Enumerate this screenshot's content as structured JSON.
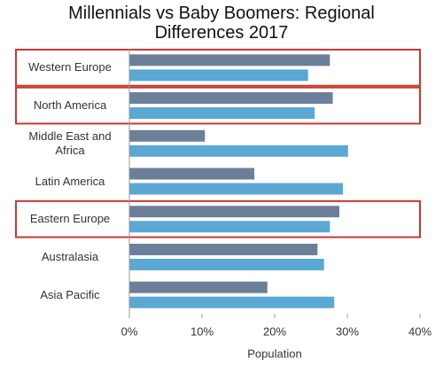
{
  "chart_data": {
    "type": "hbar",
    "title": "Millennials vs Baby Boomers: Regional Differences 2017",
    "x_label": "Population",
    "categories": [
      "Western Europe",
      "North America",
      "Middle East and Africa",
      "Latin America",
      "Eastern Europe",
      "Australasia",
      "Asia Pacific"
    ],
    "series": [
      {
        "color": "#6b7f99",
        "values": [
          27.6,
          28.0,
          10.4,
          17.2,
          28.9,
          25.9,
          19.0
        ]
      },
      {
        "color": "#5ba8d4",
        "values": [
          24.6,
          25.5,
          30.1,
          29.4,
          27.6,
          26.8,
          28.2
        ]
      }
    ],
    "xlim": [
      0,
      40
    ],
    "xticks": [
      {
        "value": 0,
        "label": "0%"
      },
      {
        "value": 10,
        "label": "10%"
      },
      {
        "value": 20,
        "label": "20%"
      },
      {
        "value": 30,
        "label": "30%"
      },
      {
        "value": 40,
        "label": "40%"
      }
    ],
    "highlighted": [
      true,
      true,
      false,
      false,
      true,
      false,
      false
    ],
    "highlight_color": "#c9392f",
    "grid": false
  }
}
